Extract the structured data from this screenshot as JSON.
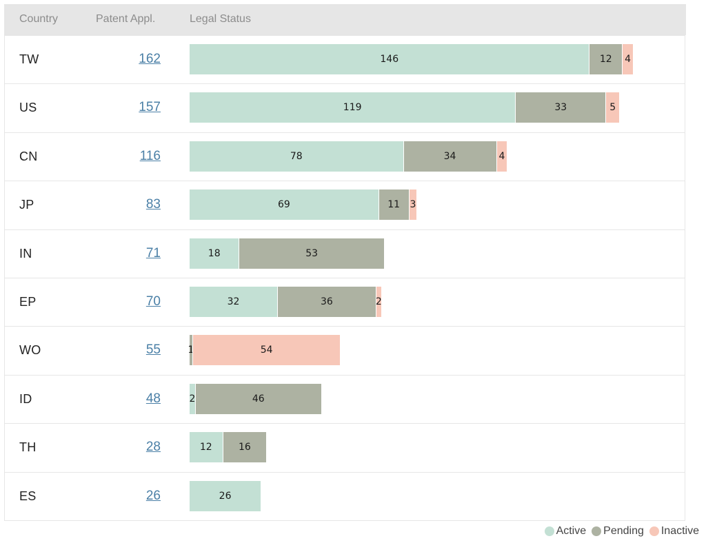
{
  "header": {
    "country": "Country",
    "patent_appl": "Patent Appl.",
    "legal_status": "Legal Status"
  },
  "colors": {
    "active": "#c3e0d4",
    "pending": "#adb2a2",
    "inactive": "#f7c7b8",
    "link": "#4a7fa6"
  },
  "legend": {
    "active": "Active",
    "pending": "Pending",
    "inactive": "Inactive"
  },
  "chart_data": {
    "type": "bar",
    "orientation": "horizontal",
    "stacked": true,
    "categories": [
      "TW",
      "US",
      "CN",
      "JP",
      "IN",
      "EP",
      "WO",
      "ID",
      "TH",
      "ES"
    ],
    "totals": [
      162,
      157,
      116,
      83,
      71,
      70,
      55,
      48,
      28,
      26
    ],
    "series": [
      {
        "name": "Active",
        "values": [
          146,
          119,
          78,
          69,
          18,
          32,
          0,
          2,
          12,
          26
        ]
      },
      {
        "name": "Pending",
        "values": [
          12,
          33,
          34,
          11,
          53,
          36,
          1,
          46,
          16,
          0
        ]
      },
      {
        "name": "Inactive",
        "values": [
          4,
          5,
          4,
          3,
          0,
          2,
          54,
          0,
          0,
          0
        ]
      }
    ],
    "xlim": [
      0,
      162
    ],
    "legend_position": "bottom-right",
    "grid": false
  }
}
